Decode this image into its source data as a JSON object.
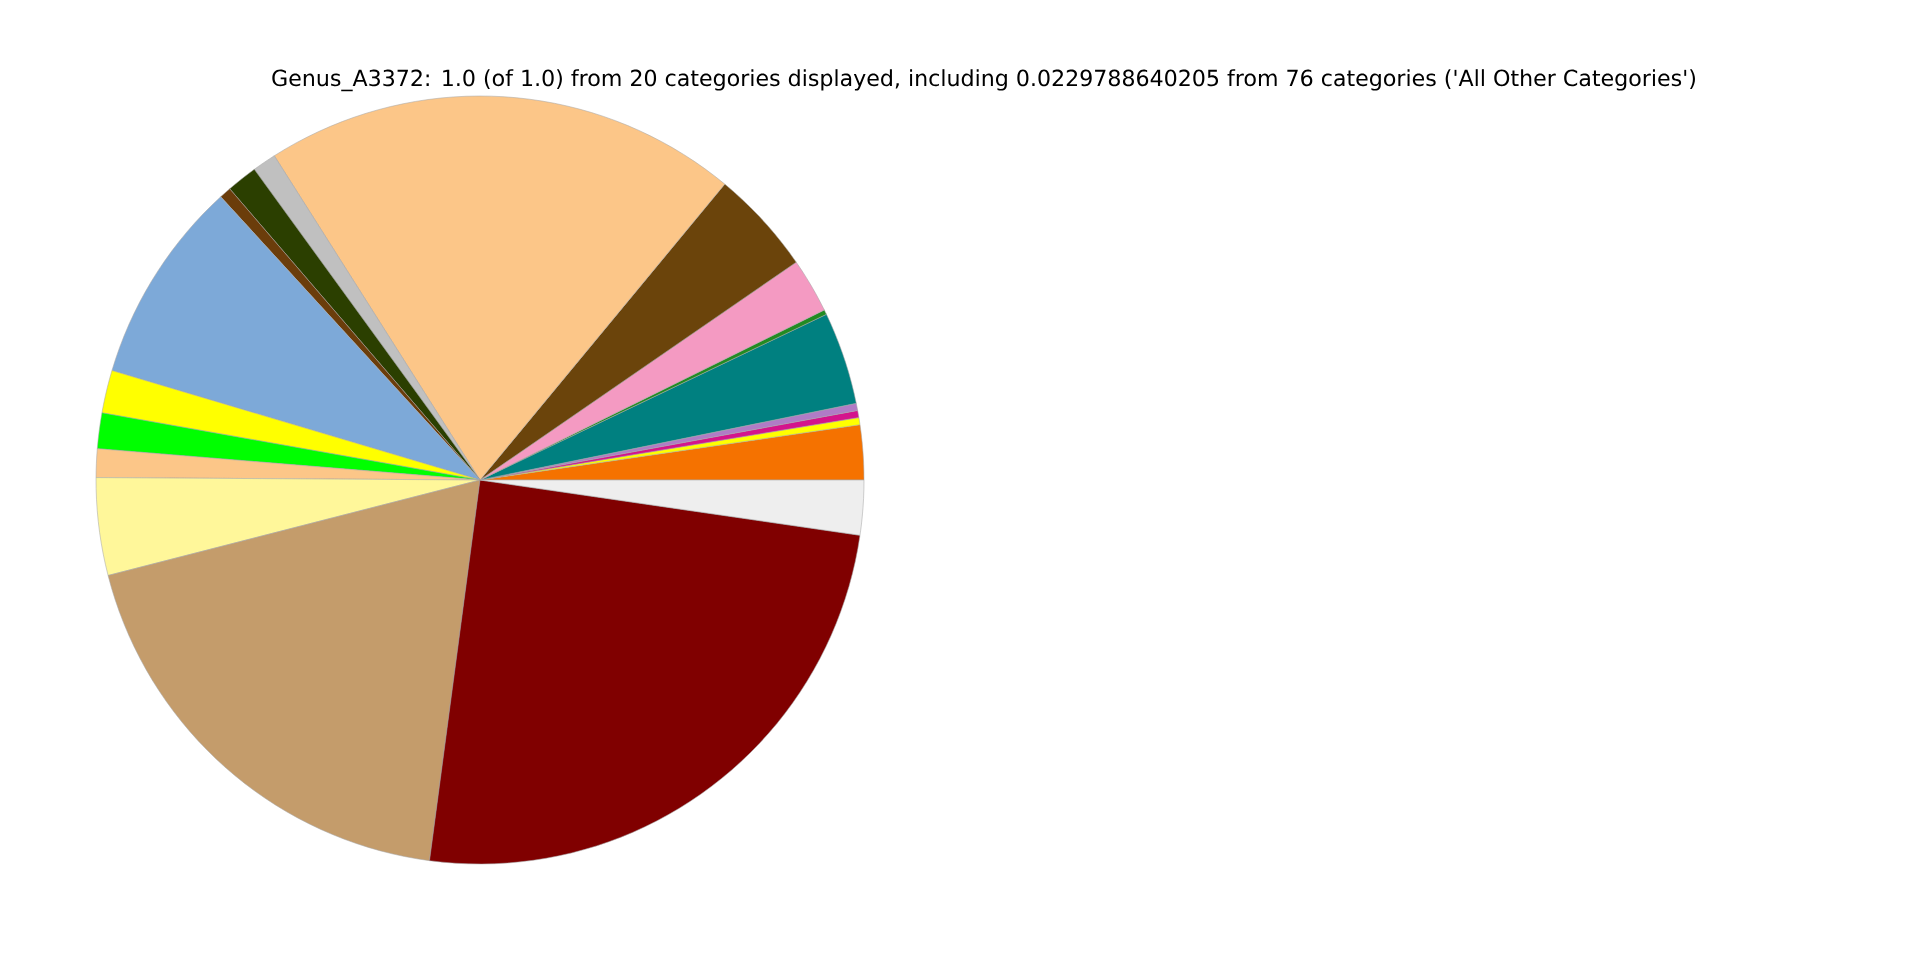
{
  "chart_data": {
    "type": "pie",
    "title": "Genus_A3372: 1.0 (of 1.0) from 20 categories displayed, including 0.0229788640205 from 76 categories ('All Other Categories')",
    "categories": [
      null,
      null,
      null,
      null,
      null,
      null,
      null,
      null,
      null,
      null,
      null,
      null,
      null,
      null,
      null,
      null,
      null,
      null,
      null,
      null
    ],
    "values": [
      2.3,
      0.3,
      0.3,
      0.3,
      3.9,
      0.2,
      2.3,
      4.4,
      20.0,
      1.0,
      1.3,
      0.5,
      8.6,
      1.8,
      1.5,
      1.2,
      4.1,
      18.9,
      24.8,
      2.3
    ],
    "colors": [
      "#f57200",
      "#ffff00",
      "#d4148c",
      "#b07cc6",
      "#008080",
      "#228b22",
      "#f49ac2",
      "#6b440b",
      "#fcc688",
      "#c0c0c0",
      "#2b3f00",
      "#6b3d0b",
      "#7da9d8",
      "#ffff00",
      "#00ff00",
      "#fcc688",
      "#fff79a",
      "#c49c6b",
      "#800000",
      "#eeeeee"
    ]
  }
}
